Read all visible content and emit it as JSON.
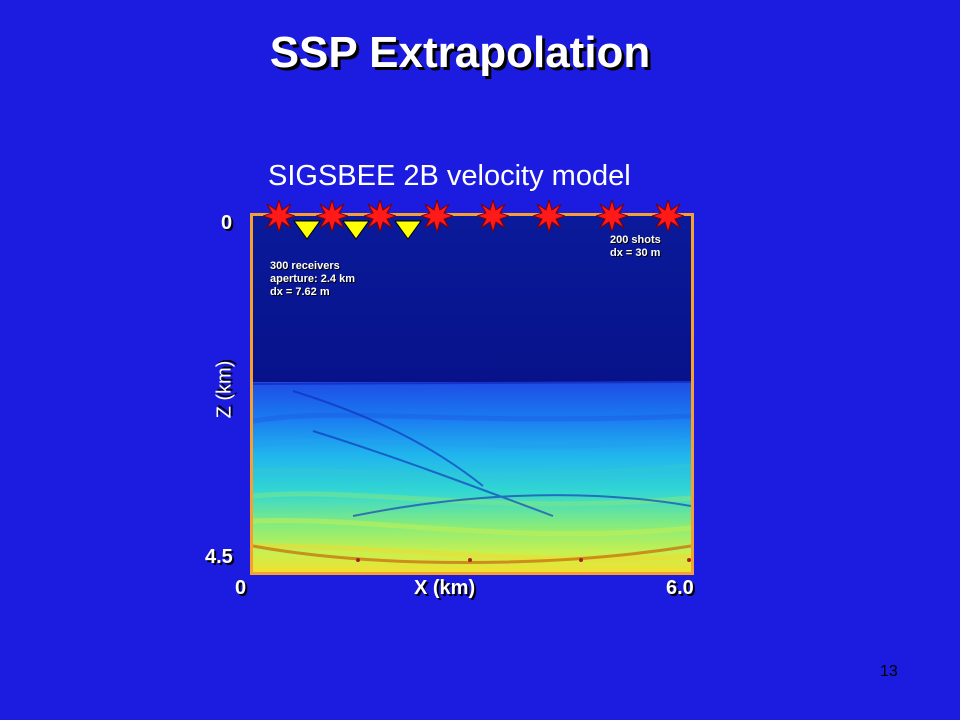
{
  "slide": {
    "title": "SSP Extrapolation",
    "subtitle": "SIGSBEE 2B velocity model",
    "page_number": "13"
  },
  "axes": {
    "z_label": "Z (km)",
    "z_top": "0",
    "z_bottom": "4.5",
    "x_label": "X (km)",
    "x_left": "0",
    "x_right": "6.0"
  },
  "annotations": {
    "receivers": [
      "300 receivers",
      "aperture: 2.4 km",
      "dx = 7.62 m"
    ],
    "shots": [
      "200 shots",
      "dx = 30 m"
    ]
  },
  "markers": {
    "shot_icon": "starburst-icon",
    "receiver_icon": "triangle-icon",
    "shot_count_shown": 8,
    "receiver_count_shown": 3
  },
  "colors": {
    "background": "#1c1ce0",
    "frame": "#f5a030",
    "shot": "#ff2020",
    "receiver": "#ffff00"
  }
}
